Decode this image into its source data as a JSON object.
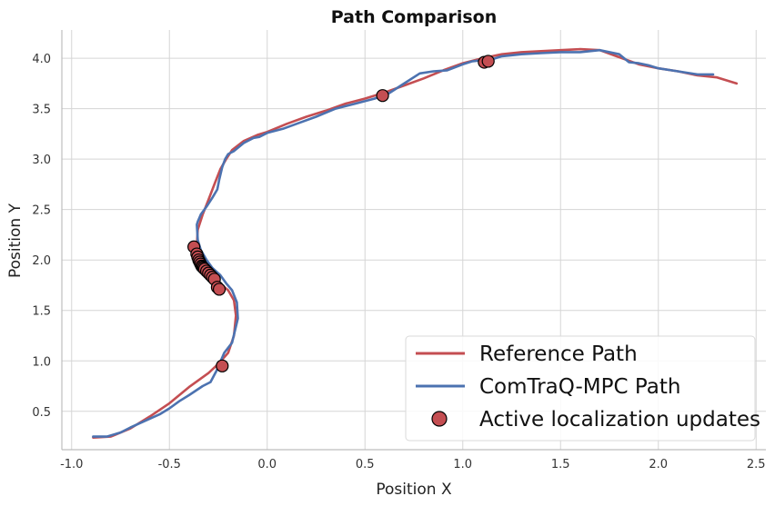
{
  "chart_data": {
    "type": "line",
    "title": "Path Comparison",
    "xlabel": "Position X",
    "ylabel": "Position Y",
    "xlim": [
      -1.05,
      2.55
    ],
    "ylim": [
      0.12,
      4.28
    ],
    "xticks": [
      -1.0,
      -0.5,
      0.0,
      0.5,
      1.0,
      1.5,
      2.0,
      2.5
    ],
    "xtick_labels": [
      "-1.0",
      "-0.5",
      "0.0",
      "0.5",
      "1.0",
      "1.5",
      "2.0",
      "2.5"
    ],
    "yticks": [
      0.5,
      1.0,
      1.5,
      2.0,
      2.5,
      3.0,
      3.5,
      4.0
    ],
    "ytick_labels": [
      "0.5",
      "1.0",
      "1.5",
      "2.0",
      "2.5",
      "3.0",
      "3.5",
      "4.0"
    ],
    "grid": true,
    "legend_position": "lower-right",
    "series": [
      {
        "name": "Reference Path",
        "kind": "line",
        "color": "#c44e52",
        "x": [
          -0.89,
          -0.8,
          -0.7,
          -0.6,
          -0.5,
          -0.4,
          -0.3,
          -0.25,
          -0.2,
          -0.17,
          -0.16,
          -0.17,
          -0.2,
          -0.25,
          -0.3,
          -0.34,
          -0.36,
          -0.355,
          -0.33,
          -0.3,
          -0.27,
          -0.24,
          -0.21,
          -0.18,
          -0.12,
          -0.05,
          0.0,
          0.1,
          0.2,
          0.3,
          0.4,
          0.5,
          0.6,
          0.7,
          0.8,
          0.9,
          1.0,
          1.1,
          1.2,
          1.3,
          1.4,
          1.5,
          1.6,
          1.7,
          1.8,
          1.9,
          2.0,
          2.1,
          2.2,
          2.3,
          2.4
        ],
        "y": [
          0.24,
          0.25,
          0.33,
          0.45,
          0.58,
          0.74,
          0.88,
          0.97,
          1.08,
          1.25,
          1.45,
          1.6,
          1.7,
          1.78,
          1.88,
          2.0,
          2.15,
          2.3,
          2.45,
          2.6,
          2.75,
          2.9,
          3.0,
          3.09,
          3.18,
          3.24,
          3.27,
          3.35,
          3.42,
          3.48,
          3.55,
          3.6,
          3.66,
          3.73,
          3.8,
          3.88,
          3.95,
          4.0,
          4.04,
          4.06,
          4.07,
          4.08,
          4.09,
          4.08,
          4.01,
          3.94,
          3.9,
          3.87,
          3.83,
          3.81,
          3.75
        ]
      },
      {
        "name": "ComTraQ-MPC Path",
        "kind": "line",
        "color": "#4c72b0",
        "x": [
          -0.89,
          -0.82,
          -0.75,
          -0.7,
          -0.62,
          -0.55,
          -0.5,
          -0.45,
          -0.4,
          -0.33,
          -0.29,
          -0.26,
          -0.22,
          -0.18,
          -0.15,
          -0.155,
          -0.18,
          -0.21,
          -0.24,
          -0.28,
          -0.31,
          -0.34,
          -0.355,
          -0.36,
          -0.355,
          -0.34,
          -0.31,
          -0.28,
          -0.255,
          -0.245,
          -0.23,
          -0.215,
          -0.2,
          -0.17,
          -0.12,
          -0.07,
          -0.04,
          0.0,
          0.08,
          0.15,
          0.25,
          0.35,
          0.45,
          0.55,
          0.62,
          0.7,
          0.78,
          0.85,
          0.92,
          1.0,
          1.05,
          1.1,
          1.15,
          1.2,
          1.3,
          1.4,
          1.5,
          1.6,
          1.7,
          1.8,
          1.85,
          1.9,
          1.95,
          2.0,
          2.1,
          2.2,
          2.28
        ],
        "y": [
          0.25,
          0.25,
          0.29,
          0.34,
          0.41,
          0.47,
          0.53,
          0.6,
          0.66,
          0.75,
          0.79,
          0.9,
          1.08,
          1.18,
          1.42,
          1.58,
          1.7,
          1.77,
          1.85,
          1.92,
          2.0,
          2.1,
          2.2,
          2.35,
          2.38,
          2.45,
          2.53,
          2.62,
          2.7,
          2.8,
          2.92,
          3.0,
          3.05,
          3.08,
          3.16,
          3.21,
          3.22,
          3.26,
          3.3,
          3.35,
          3.42,
          3.5,
          3.55,
          3.6,
          3.65,
          3.75,
          3.85,
          3.87,
          3.88,
          3.94,
          3.97,
          3.98,
          3.99,
          4.02,
          4.04,
          4.05,
          4.06,
          4.06,
          4.08,
          4.04,
          3.96,
          3.95,
          3.93,
          3.9,
          3.87,
          3.84,
          3.84
        ]
      },
      {
        "name": "Active localization updates",
        "kind": "scatter",
        "color": "#c44e52",
        "x": [
          -0.375,
          -0.36,
          -0.355,
          -0.35,
          -0.345,
          -0.34,
          -0.335,
          -0.33,
          -0.325,
          -0.32,
          -0.31,
          -0.3,
          -0.29,
          -0.28,
          -0.27,
          -0.255,
          -0.245,
          -0.23,
          0.59,
          1.11,
          1.13
        ],
        "y": [
          2.13,
          2.06,
          2.03,
          2.0,
          1.98,
          1.96,
          1.94,
          1.93,
          1.92,
          1.91,
          1.89,
          1.87,
          1.85,
          1.83,
          1.81,
          1.73,
          1.71,
          0.95,
          3.63,
          3.96,
          3.97
        ]
      }
    ]
  }
}
